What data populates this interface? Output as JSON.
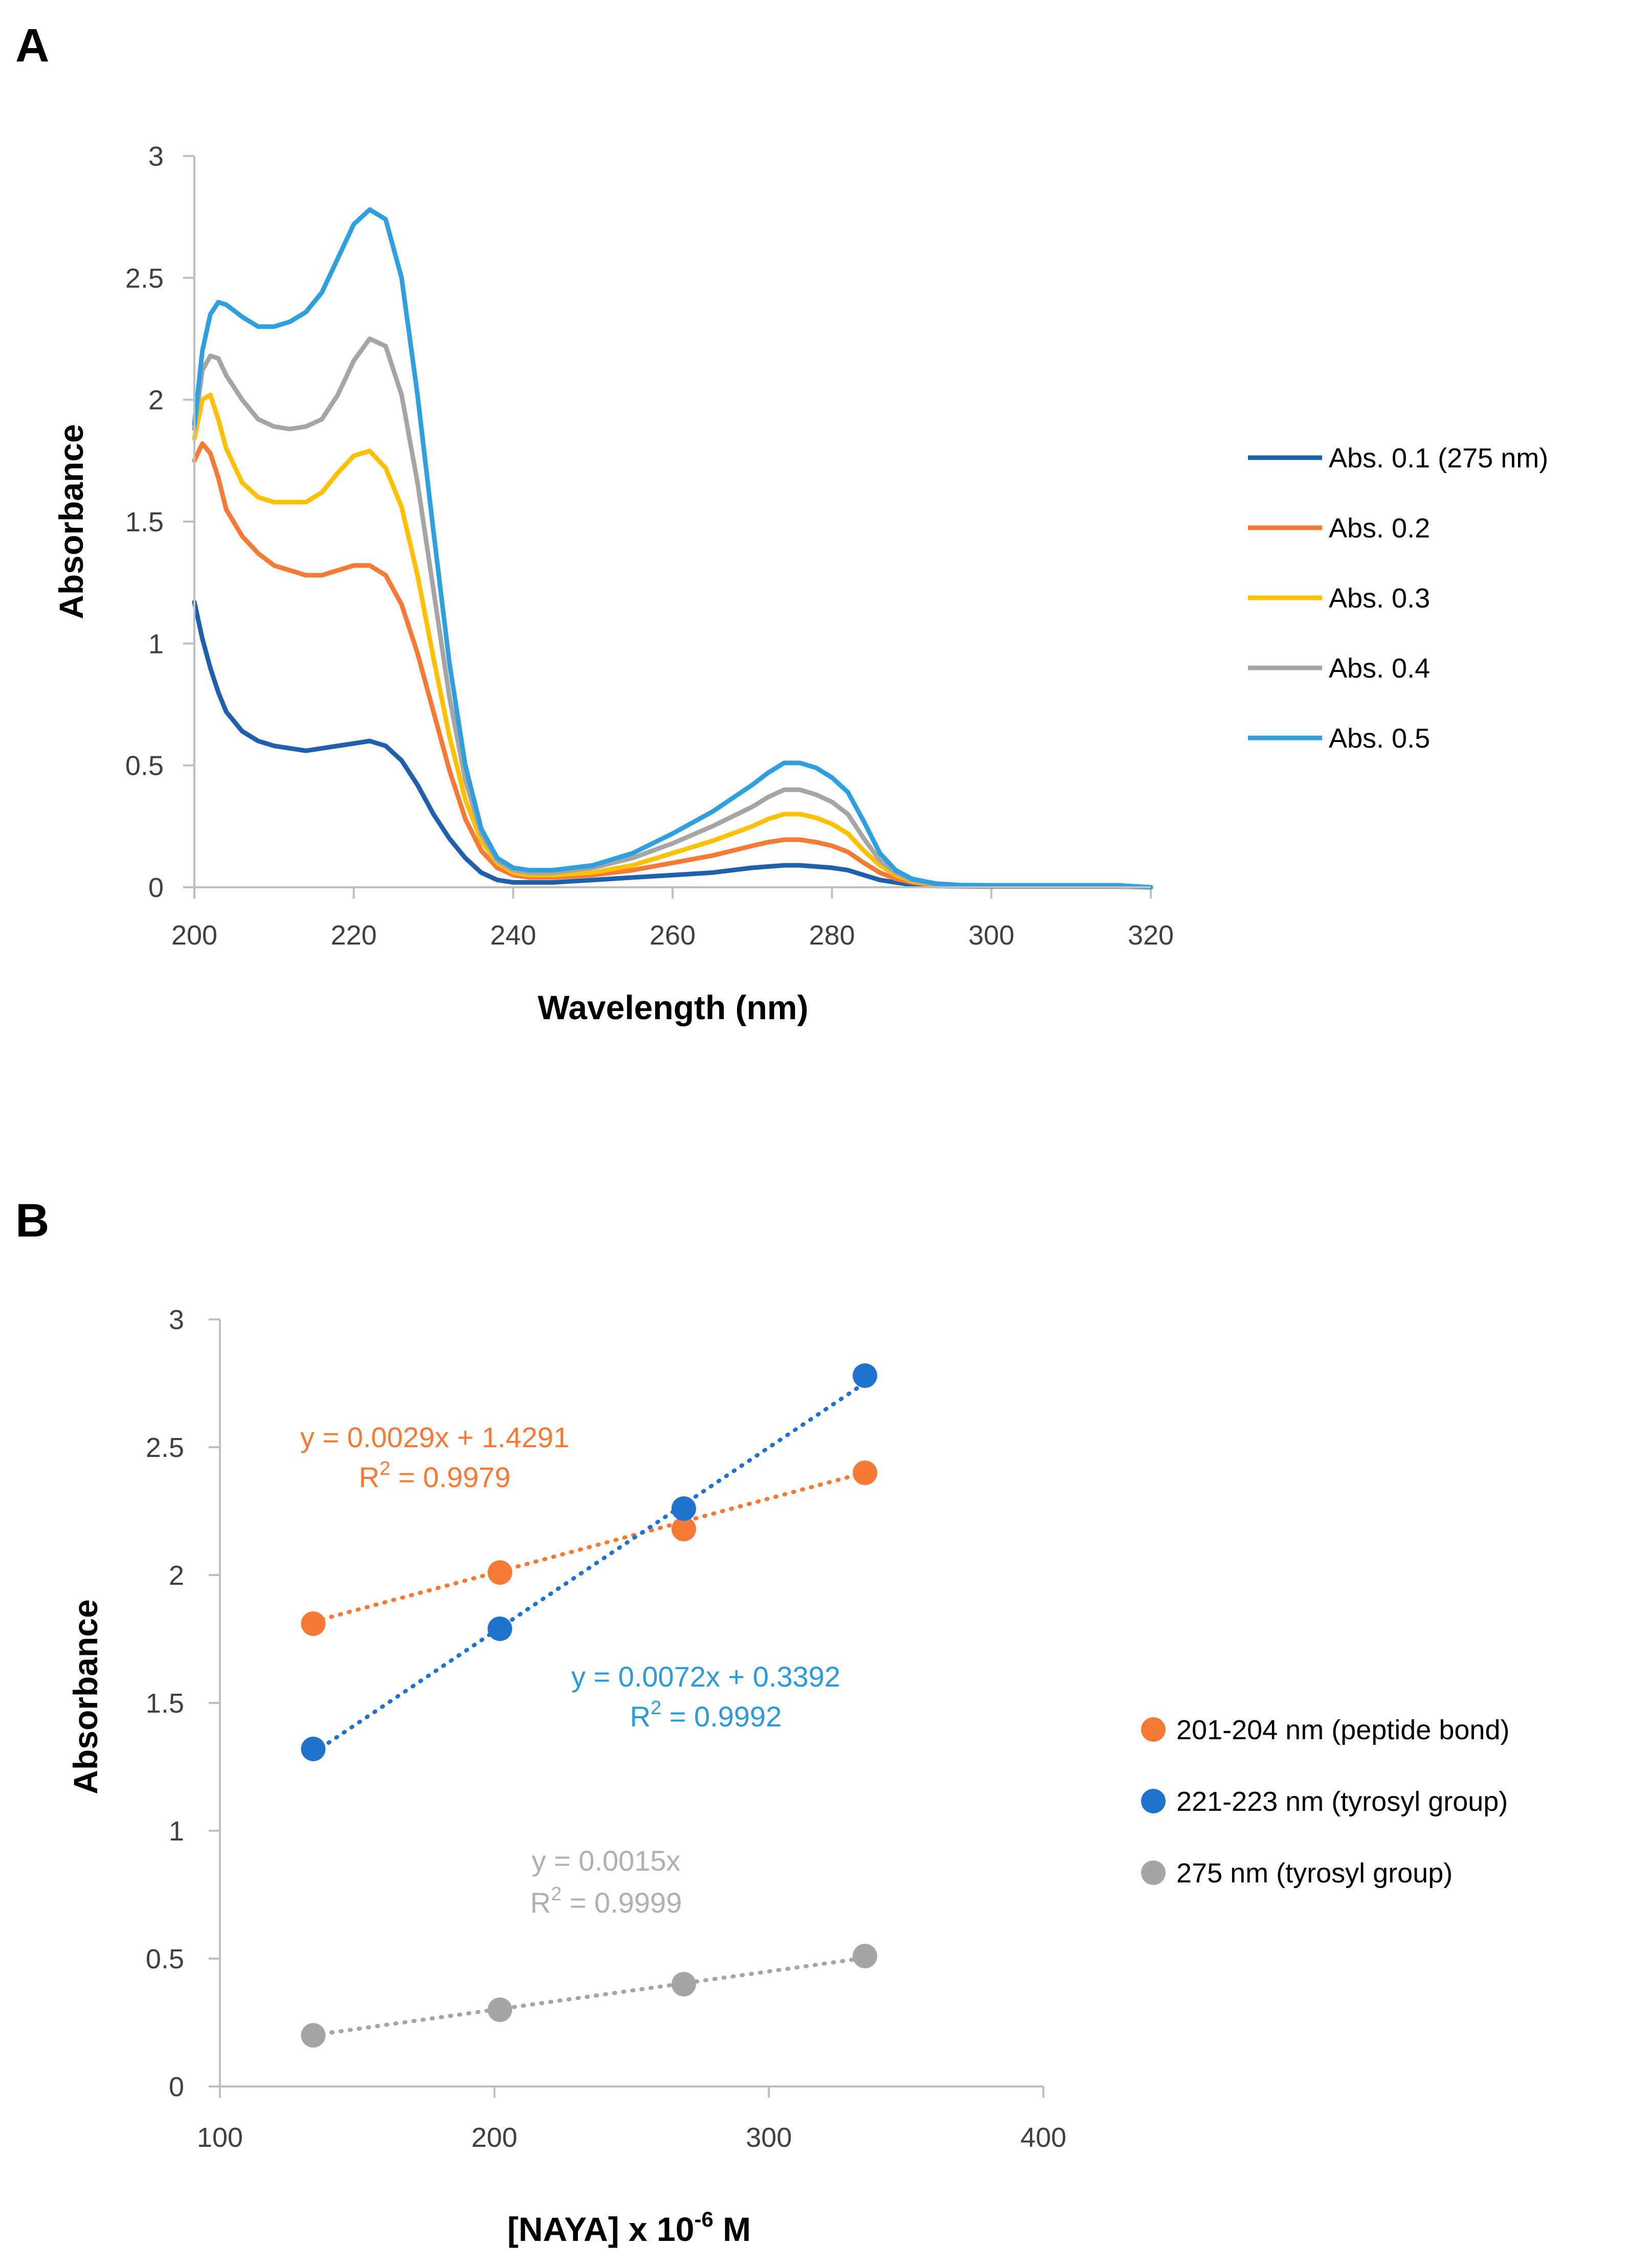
{
  "chart_data": [
    {
      "panel": "A",
      "type": "line",
      "xlabel": "Wavelength (nm)",
      "ylabel": "Absorbance",
      "xlim": [
        200,
        320
      ],
      "ylim": [
        0,
        3
      ],
      "xticks": [
        "200",
        "220",
        "240",
        "260",
        "280",
        "300",
        "320"
      ],
      "yticks": [
        "0",
        "0.5",
        "1",
        "1.5",
        "2",
        "2.5",
        "3"
      ],
      "x": [
        200,
        201,
        202,
        203,
        204,
        206,
        208,
        210,
        212,
        214,
        216,
        218,
        220,
        222,
        224,
        226,
        228,
        230,
        232,
        234,
        236,
        238,
        240,
        242,
        245,
        250,
        255,
        260,
        265,
        270,
        272,
        274,
        276,
        278,
        280,
        282,
        284,
        286,
        288,
        290,
        293,
        296,
        300,
        305,
        310,
        316,
        320
      ],
      "legend_position": "right",
      "series": [
        {
          "name": "Abs. 0.1 (275 nm)",
          "color": "#1F5FAD",
          "values": [
            1.17,
            1.02,
            0.9,
            0.8,
            0.72,
            0.64,
            0.6,
            0.58,
            0.57,
            0.56,
            0.57,
            0.58,
            0.59,
            0.6,
            0.58,
            0.52,
            0.42,
            0.3,
            0.2,
            0.12,
            0.06,
            0.03,
            0.02,
            0.02,
            0.02,
            0.03,
            0.04,
            0.05,
            0.06,
            0.08,
            0.085,
            0.09,
            0.09,
            0.085,
            0.08,
            0.07,
            0.05,
            0.03,
            0.02,
            0.01,
            0.005,
            0.004,
            0.003,
            0.003,
            0.003,
            0.003,
            0.0
          ]
        },
        {
          "name": "Abs. 0.2",
          "color": "#F47A36",
          "values": [
            1.75,
            1.82,
            1.78,
            1.68,
            1.55,
            1.44,
            1.37,
            1.32,
            1.3,
            1.28,
            1.28,
            1.3,
            1.32,
            1.32,
            1.28,
            1.16,
            0.96,
            0.72,
            0.48,
            0.28,
            0.15,
            0.08,
            0.05,
            0.04,
            0.04,
            0.05,
            0.07,
            0.1,
            0.13,
            0.17,
            0.185,
            0.195,
            0.195,
            0.185,
            0.17,
            0.145,
            0.1,
            0.06,
            0.035,
            0.02,
            0.008,
            0.005,
            0.004,
            0.004,
            0.004,
            0.004,
            0.0
          ]
        },
        {
          "name": "Abs. 0.3",
          "color": "#FFC000",
          "values": [
            1.84,
            2.0,
            2.02,
            1.92,
            1.8,
            1.66,
            1.6,
            1.58,
            1.58,
            1.58,
            1.62,
            1.7,
            1.77,
            1.79,
            1.72,
            1.56,
            1.28,
            0.94,
            0.62,
            0.36,
            0.19,
            0.1,
            0.06,
            0.05,
            0.05,
            0.06,
            0.09,
            0.14,
            0.19,
            0.25,
            0.28,
            0.3,
            0.3,
            0.285,
            0.26,
            0.22,
            0.15,
            0.09,
            0.05,
            0.025,
            0.01,
            0.006,
            0.005,
            0.005,
            0.005,
            0.005,
            0.0
          ]
        },
        {
          "name": "Abs. 0.4",
          "color": "#A5A5A5",
          "values": [
            1.88,
            2.12,
            2.18,
            2.17,
            2.1,
            2.0,
            1.92,
            1.89,
            1.88,
            1.89,
            1.92,
            2.02,
            2.16,
            2.25,
            2.22,
            2.02,
            1.66,
            1.22,
            0.78,
            0.44,
            0.22,
            0.11,
            0.07,
            0.06,
            0.06,
            0.08,
            0.12,
            0.18,
            0.25,
            0.33,
            0.37,
            0.4,
            0.4,
            0.38,
            0.35,
            0.3,
            0.2,
            0.11,
            0.06,
            0.03,
            0.012,
            0.007,
            0.006,
            0.006,
            0.006,
            0.006,
            0.0
          ]
        },
        {
          "name": "Abs. 0.5",
          "color": "#2F9FDE",
          "values": [
            1.9,
            2.2,
            2.35,
            2.4,
            2.39,
            2.34,
            2.3,
            2.3,
            2.32,
            2.36,
            2.44,
            2.58,
            2.72,
            2.78,
            2.74,
            2.5,
            2.02,
            1.46,
            0.92,
            0.5,
            0.24,
            0.12,
            0.08,
            0.07,
            0.07,
            0.09,
            0.14,
            0.22,
            0.31,
            0.42,
            0.47,
            0.51,
            0.51,
            0.49,
            0.45,
            0.39,
            0.27,
            0.14,
            0.07,
            0.035,
            0.015,
            0.009,
            0.008,
            0.008,
            0.008,
            0.008,
            0.0
          ]
        }
      ]
    },
    {
      "panel": "B",
      "type": "scatter",
      "xlabel": "[NAYA] x 10",
      "xlabel_exp": "-6",
      "xlabel_unit": " M",
      "ylabel": "Absorbance",
      "xlim": [
        100,
        400
      ],
      "ylim": [
        0,
        3
      ],
      "xticks": [
        "100",
        "200",
        "300",
        "400"
      ],
      "yticks": [
        "0",
        "0.5",
        "1",
        "1.5",
        "2",
        "2.5",
        "3"
      ],
      "legend_position": "right",
      "x": [
        134,
        202,
        269,
        335
      ],
      "series": [
        {
          "name": "201-204 nm (peptide bond)",
          "color": "#F47A36",
          "values": [
            1.81,
            2.01,
            2.18,
            2.4
          ],
          "trendline": {
            "slope": 0.0029,
            "intercept": 1.4291
          },
          "equation": "y = 0.0029x + 1.4291",
          "r2_label": "R",
          "r2_value": " = 0.9979"
        },
        {
          "name": "221-223 nm (tyrosyl group)",
          "color": "#1F73CC",
          "values": [
            1.32,
            1.79,
            2.26,
            2.78
          ],
          "trendline": {
            "slope": 0.0072,
            "intercept": 0.3392
          },
          "equation": "y = 0.0072x + 0.3392",
          "r2_label": "R",
          "r2_value": " = 0.9992"
        },
        {
          "name": "275 nm (tyrosyl group)",
          "color": "#A5A5A5",
          "values": [
            0.2,
            0.3,
            0.4,
            0.51
          ],
          "trendline": {
            "slope": 0.0015,
            "intercept": 0.0
          },
          "equation": "y = 0.0015x",
          "r2_label": "R",
          "r2_value": " = 0.9999"
        }
      ]
    }
  ],
  "eq_colors": [
    "#F47A36",
    "#2A9ADB",
    "#B0B0B0"
  ],
  "trend_colors": [
    "#F47A36",
    "#1F73CC",
    "#A5A5A5"
  ]
}
